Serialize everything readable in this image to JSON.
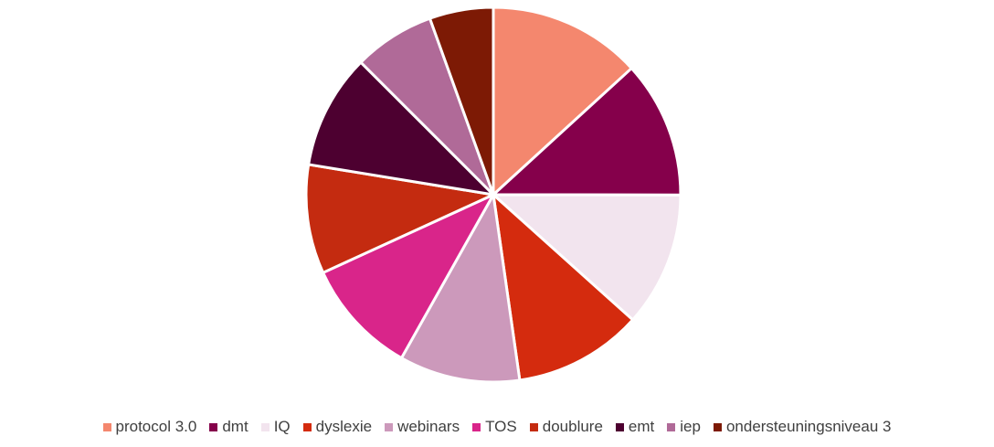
{
  "chart_data": {
    "type": "pie",
    "categories": [
      "protocol 3.0",
      "dmt",
      "IQ",
      "dyslexie",
      "webinars",
      "TOS",
      "doublure",
      "emt",
      "iep",
      "ondersteuningsniveau 3"
    ],
    "values": [
      13.2,
      11.8,
      11.6,
      11.1,
      10.4,
      10.0,
      9.4,
      9.9,
      7.0,
      5.5
    ],
    "colors": [
      "#F4876E",
      "#85004B",
      "#F2E4EE",
      "#D42B0E",
      "#CC99BB",
      "#D9258A",
      "#C42B10",
      "#4D0030",
      "#B06A98",
      "#7D1A05"
    ],
    "legend": "bottom"
  }
}
